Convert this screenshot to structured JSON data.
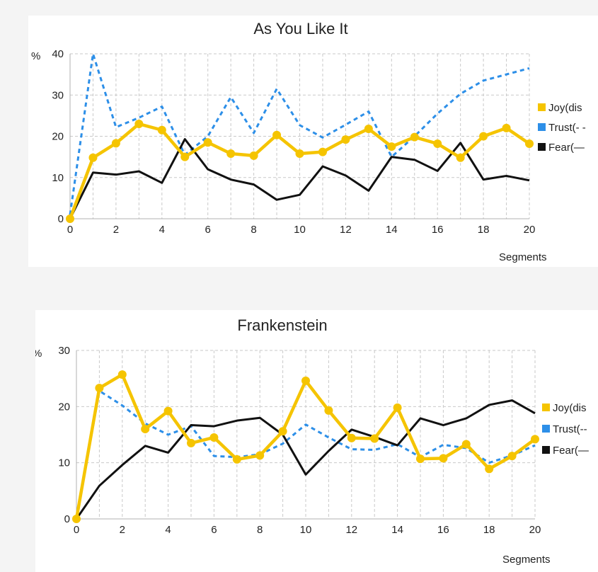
{
  "chart_data": [
    {
      "type": "line",
      "title": "As You Like It",
      "ylabel": "%",
      "xlabel": "Segments",
      "x": [
        0,
        1,
        2,
        3,
        4,
        5,
        6,
        7,
        8,
        9,
        10,
        11,
        12,
        13,
        14,
        15,
        16,
        17,
        18,
        19,
        20
      ],
      "xticks": [
        "0",
        "2",
        "4",
        "6",
        "8",
        "10",
        "12",
        "14",
        "16",
        "18",
        "20"
      ],
      "yticks": [
        "0",
        "10",
        "20",
        "30",
        "40"
      ],
      "ylim": [
        0,
        40
      ],
      "xlim": [
        0,
        20
      ],
      "grid": true,
      "legend_placement": "right",
      "series": [
        {
          "name": "Joy(dis",
          "color": "#f5c400",
          "style": "solid-markers",
          "values": [
            0,
            14.8,
            18.3,
            23,
            21.5,
            15,
            18.5,
            15.8,
            15.3,
            20.3,
            15.8,
            16.2,
            19.2,
            21.8,
            17.5,
            19.8,
            18.2,
            14.8,
            20,
            22,
            18.2
          ]
        },
        {
          "name": "Trust(- -",
          "color": "#2d8fe8",
          "style": "dashed",
          "values": [
            1,
            40,
            22.2,
            24.5,
            27.2,
            15.5,
            20,
            29.5,
            20.8,
            31.5,
            22.7,
            19.7,
            22.8,
            26,
            15,
            20,
            25.5,
            30.3,
            33.5,
            35,
            36.5
          ]
        },
        {
          "name": "Fear(—",
          "color": "#111111",
          "style": "solid",
          "values": [
            0,
            11.2,
            10.7,
            11.5,
            8.7,
            19.3,
            12,
            9.5,
            8.3,
            4.6,
            5.8,
            12.7,
            10.5,
            6.8,
            15,
            14.3,
            11.6,
            18.4,
            9.5,
            10.4,
            9.3
          ]
        }
      ]
    },
    {
      "type": "line",
      "title": "Frankenstein",
      "ylabel": "%",
      "xlabel": "Segments",
      "x": [
        0,
        1,
        2,
        3,
        4,
        5,
        6,
        7,
        8,
        9,
        10,
        11,
        12,
        13,
        14,
        15,
        16,
        17,
        18,
        19,
        20
      ],
      "xticks": [
        "0",
        "2",
        "4",
        "6",
        "8",
        "10",
        "12",
        "14",
        "16",
        "18",
        "20"
      ],
      "yticks": [
        "0",
        "10",
        "20",
        "30"
      ],
      "ylim": [
        0,
        30
      ],
      "xlim": [
        0,
        20
      ],
      "grid": true,
      "legend_placement": "right",
      "series": [
        {
          "name": "Joy(dis",
          "color": "#f5c400",
          "style": "solid-markers",
          "values": [
            0,
            23.3,
            25.7,
            16,
            19.2,
            13.5,
            14.5,
            10.6,
            11.3,
            15.6,
            24.6,
            19.3,
            14.4,
            14.3,
            19.8,
            10.7,
            10.8,
            13.3,
            8.9,
            11.2,
            14.2
          ]
        },
        {
          "name": "Trust(--",
          "color": "#2d8fe8",
          "style": "dashed",
          "values": [
            0,
            22.8,
            20.2,
            17,
            15,
            16.5,
            11.2,
            11,
            11.5,
            13.4,
            16.8,
            14.5,
            12.4,
            12.3,
            13.3,
            11,
            13.2,
            12.6,
            10,
            11.3,
            13.1
          ]
        },
        {
          "name": "Fear(—",
          "color": "#111111",
          "style": "solid",
          "values": [
            0,
            5.9,
            9.6,
            13,
            11.8,
            16.7,
            16.5,
            17.5,
            18,
            15,
            7.9,
            12.1,
            15.9,
            14.6,
            13.1,
            17.9,
            16.7,
            17.9,
            20.3,
            21.1,
            18.8
          ]
        }
      ]
    }
  ]
}
